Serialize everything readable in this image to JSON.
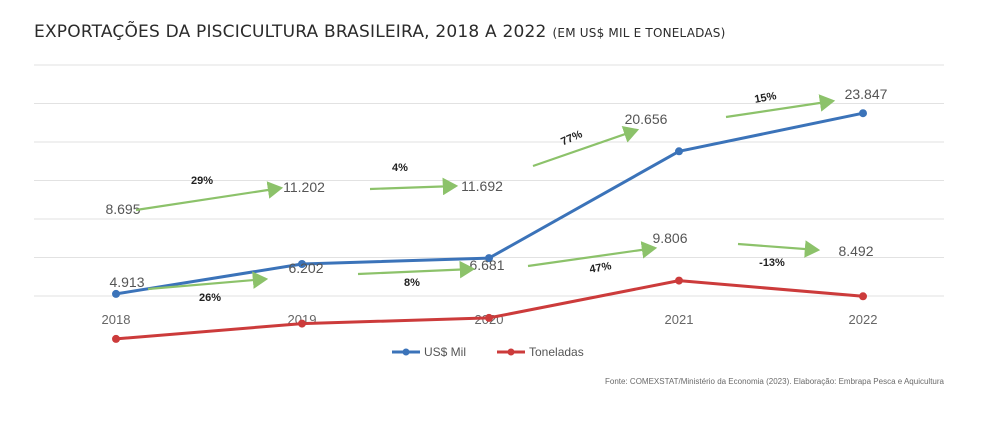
{
  "chart_data": {
    "type": "line",
    "title": "EXPORTAÇÕES DA PISCICULTURA BRASILEIRA, 2018 A 2022",
    "subtitle": "(EM US$ MIL E TONELADAS)",
    "categories": [
      "2018",
      "2019",
      "2020",
      "2021",
      "2022"
    ],
    "series": [
      {
        "name": "US$ Mil",
        "color": "#3b73b9",
        "values": [
          8695,
          11202,
          11692,
          20656,
          23847
        ],
        "value_labels": [
          "8.695",
          "11.202",
          "11.692",
          "20.656",
          "23.847"
        ],
        "change_labels": [
          "29%",
          "4%",
          "77%",
          "15%"
        ]
      },
      {
        "name": "Toneladas",
        "color": "#cc3b3b",
        "values": [
          4913,
          6202,
          6681,
          9806,
          8492
        ],
        "value_labels": [
          "4.913",
          "6.202",
          "6.681",
          "9.806",
          "8.492"
        ],
        "change_labels": [
          "26%",
          "8%",
          "47%",
          "-13%"
        ]
      }
    ],
    "arrow_color": "#8cc26a",
    "grid": true,
    "legend_position": "bottom-center"
  },
  "source": "Fonte: COMEXSTAT/Ministério da Economia (2023). Elaboração: Embrapa Pesca e Aquicultura"
}
